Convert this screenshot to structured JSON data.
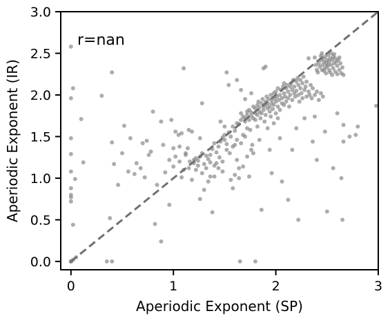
{
  "chart_data": {
    "type": "scatter",
    "xlabel": "Aperiodic Exponent (SP)",
    "ylabel": "Aperiodic Exponent (IR)",
    "xlim": [
      -0.1,
      3.0
    ],
    "ylim": [
      -0.1,
      3.0
    ],
    "xticks": [
      "0",
      "1",
      "2",
      "3"
    ],
    "yticks": [
      "0.0",
      "0.5",
      "1.0",
      "1.5",
      "2.0",
      "2.5",
      "3.0"
    ],
    "annotation": "r=nan",
    "reference_line": {
      "style": "dashed",
      "from": [
        0,
        0
      ],
      "to": [
        3,
        3
      ]
    },
    "point_color": "#808080",
    "line_color": "#707070",
    "grid": false,
    "points": [
      [
        0.0,
        0.0
      ],
      [
        0.0,
        0.0
      ],
      [
        0.0,
        0.0
      ],
      [
        0.02,
        0.02
      ],
      [
        0.05,
        0.05
      ],
      [
        0.0,
        0.72
      ],
      [
        0.0,
        0.77
      ],
      [
        0.0,
        0.8
      ],
      [
        0.0,
        0.88
      ],
      [
        0.0,
        1.08
      ],
      [
        0.0,
        1.29
      ],
      [
        0.0,
        1.48
      ],
      [
        0.0,
        1.96
      ],
      [
        0.0,
        2.58
      ],
      [
        0.02,
        2.08
      ],
      [
        0.02,
        0.44
      ],
      [
        0.04,
        0.99
      ],
      [
        0.1,
        1.71
      ],
      [
        0.12,
        1.19
      ],
      [
        0.3,
        1.99
      ],
      [
        0.35,
        0.0
      ],
      [
        0.4,
        0.0
      ],
      [
        0.38,
        0.52
      ],
      [
        0.4,
        1.43
      ],
      [
        0.4,
        2.27
      ],
      [
        0.42,
        1.17
      ],
      [
        0.52,
        1.63
      ],
      [
        0.58,
        1.48
      ],
      [
        0.62,
        1.05
      ],
      [
        0.68,
        1.12
      ],
      [
        0.72,
        1.01
      ],
      [
        0.74,
        1.45
      ],
      [
        0.78,
        1.32
      ],
      [
        0.8,
        1.8
      ],
      [
        0.82,
        0.45
      ],
      [
        0.88,
        0.24
      ],
      [
        0.88,
        1.68
      ],
      [
        0.92,
        1.07
      ],
      [
        0.96,
        0.68
      ],
      [
        0.98,
        1.7
      ],
      [
        1.0,
        1.36
      ],
      [
        1.02,
        1.56
      ],
      [
        1.05,
        1.52
      ],
      [
        1.08,
        1.01
      ],
      [
        1.08,
        1.54
      ],
      [
        1.1,
        2.32
      ],
      [
        1.12,
        1.3
      ],
      [
        1.15,
        1.58
      ],
      [
        1.15,
        1.12
      ],
      [
        1.18,
        0.98
      ],
      [
        1.2,
        1.18
      ],
      [
        1.2,
        1.22
      ],
      [
        1.22,
        1.24
      ],
      [
        1.24,
        1.21
      ],
      [
        1.24,
        1.15
      ],
      [
        1.26,
        0.75
      ],
      [
        1.26,
        1.26
      ],
      [
        1.28,
        1.3
      ],
      [
        1.28,
        1.9
      ],
      [
        1.3,
        1.17
      ],
      [
        1.32,
        1.27
      ],
      [
        1.32,
        1.12
      ],
      [
        1.34,
        1.23
      ],
      [
        1.36,
        1.28
      ],
      [
        1.36,
        1.19
      ],
      [
        1.38,
        0.59
      ],
      [
        1.38,
        1.35
      ],
      [
        1.4,
        1.15
      ],
      [
        1.4,
        1.42
      ],
      [
        1.42,
        1.31
      ],
      [
        1.44,
        1.38
      ],
      [
        1.45,
        1.25
      ],
      [
        1.46,
        1.44
      ],
      [
        1.48,
        1.08
      ],
      [
        1.48,
        1.49
      ],
      [
        1.5,
        1.46
      ],
      [
        1.5,
        1.52
      ],
      [
        1.52,
        1.41
      ],
      [
        1.52,
        2.27
      ],
      [
        1.54,
        1.55
      ],
      [
        1.55,
        1.3
      ],
      [
        1.56,
        1.5
      ],
      [
        1.58,
        1.62
      ],
      [
        1.58,
        0.88
      ],
      [
        1.6,
        1.57
      ],
      [
        1.6,
        1.4
      ],
      [
        1.62,
        1.66
      ],
      [
        1.62,
        1.22
      ],
      [
        1.64,
        1.65
      ],
      [
        1.64,
        1.0
      ],
      [
        1.65,
        0.0
      ],
      [
        1.66,
        1.7
      ],
      [
        1.66,
        1.78
      ],
      [
        1.68,
        1.74
      ],
      [
        1.68,
        1.52
      ],
      [
        1.7,
        1.68
      ],
      [
        1.7,
        1.72
      ],
      [
        1.7,
        1.95
      ],
      [
        1.72,
        1.8
      ],
      [
        1.72,
        1.76
      ],
      [
        1.72,
        1.6
      ],
      [
        1.74,
        1.7
      ],
      [
        1.74,
        1.82
      ],
      [
        1.75,
        1.58
      ],
      [
        1.76,
        1.75
      ],
      [
        1.76,
        1.79
      ],
      [
        1.77,
        1.4
      ],
      [
        1.78,
        1.72
      ],
      [
        1.78,
        1.86
      ],
      [
        1.8,
        1.78
      ],
      [
        1.8,
        1.84
      ],
      [
        1.8,
        1.7
      ],
      [
        1.8,
        0.0
      ],
      [
        1.82,
        1.88
      ],
      [
        1.82,
        1.76
      ],
      [
        1.82,
        1.62
      ],
      [
        1.83,
        1.92
      ],
      [
        1.84,
        1.8
      ],
      [
        1.84,
        1.85
      ],
      [
        1.85,
        1.72
      ],
      [
        1.86,
        1.9
      ],
      [
        1.86,
        1.78
      ],
      [
        1.87,
        1.95
      ],
      [
        1.88,
        1.82
      ],
      [
        1.88,
        1.86
      ],
      [
        1.89,
        1.68
      ],
      [
        1.9,
        1.88
      ],
      [
        1.9,
        1.92
      ],
      [
        1.9,
        1.76
      ],
      [
        1.91,
        1.98
      ],
      [
        1.92,
        1.84
      ],
      [
        1.92,
        1.9
      ],
      [
        1.93,
        1.95
      ],
      [
        1.94,
        1.8
      ],
      [
        1.94,
        1.86
      ],
      [
        1.95,
        2.0
      ],
      [
        1.95,
        1.74
      ],
      [
        1.96,
        1.9
      ],
      [
        1.96,
        1.94
      ],
      [
        1.97,
        1.83
      ],
      [
        1.98,
        2.02
      ],
      [
        1.98,
        1.88
      ],
      [
        1.99,
        1.96
      ],
      [
        2.0,
        1.92
      ],
      [
        2.0,
        2.04
      ],
      [
        2.0,
        1.78
      ],
      [
        2.01,
        1.98
      ],
      [
        2.02,
        1.86
      ],
      [
        2.02,
        2.08
      ],
      [
        2.03,
        1.94
      ],
      [
        2.04,
        2.0
      ],
      [
        2.04,
        1.82
      ],
      [
        2.05,
        2.06
      ],
      [
        2.06,
        1.9
      ],
      [
        2.06,
        1.96
      ],
      [
        2.07,
        2.1
      ],
      [
        2.08,
        1.88
      ],
      [
        2.08,
        2.02
      ],
      [
        2.09,
        1.98
      ],
      [
        2.1,
        2.08
      ],
      [
        2.1,
        1.92
      ],
      [
        2.11,
        2.12
      ],
      [
        2.12,
        1.96
      ],
      [
        2.12,
        2.04
      ],
      [
        2.13,
        1.86
      ],
      [
        2.14,
        2.1
      ],
      [
        2.14,
        2.0
      ],
      [
        2.15,
        2.14
      ],
      [
        2.16,
        1.94
      ],
      [
        2.16,
        2.06
      ],
      [
        2.17,
        2.18
      ],
      [
        2.18,
        2.02
      ],
      [
        2.18,
        2.1
      ],
      [
        2.19,
        1.98
      ],
      [
        2.2,
        2.16
      ],
      [
        2.2,
        2.05
      ],
      [
        2.21,
        2.2
      ],
      [
        2.22,
        2.0
      ],
      [
        2.22,
        2.12
      ],
      [
        2.23,
        1.92
      ],
      [
        2.24,
        2.08
      ],
      [
        2.24,
        2.18
      ],
      [
        2.25,
        2.02
      ],
      [
        2.26,
        2.14
      ],
      [
        2.26,
        1.96
      ],
      [
        2.27,
        2.22
      ],
      [
        2.28,
        2.06
      ],
      [
        2.29,
        2.1
      ],
      [
        2.3,
        1.98
      ],
      [
        2.3,
        2.16
      ],
      [
        2.32,
        2.04
      ],
      [
        2.33,
        2.0
      ],
      [
        2.34,
        2.12
      ],
      [
        2.35,
        1.96
      ],
      [
        2.36,
        2.08
      ],
      [
        2.38,
        2.0
      ],
      [
        2.4,
        2.04
      ],
      [
        2.42,
        1.94
      ],
      [
        2.44,
        2.02
      ],
      [
        2.46,
        1.98
      ],
      [
        2.4,
        2.3
      ],
      [
        2.42,
        2.38
      ],
      [
        2.43,
        2.34
      ],
      [
        2.44,
        2.42
      ],
      [
        2.45,
        2.3
      ],
      [
        2.46,
        2.36
      ],
      [
        2.46,
        2.44
      ],
      [
        2.47,
        2.4
      ],
      [
        2.48,
        2.32
      ],
      [
        2.48,
        2.46
      ],
      [
        2.49,
        2.38
      ],
      [
        2.5,
        2.42
      ],
      [
        2.5,
        2.34
      ],
      [
        2.51,
        2.48
      ],
      [
        2.52,
        2.4
      ],
      [
        2.52,
        2.3
      ],
      [
        2.53,
        2.44
      ],
      [
        2.54,
        2.36
      ],
      [
        2.54,
        2.5
      ],
      [
        2.55,
        2.42
      ],
      [
        2.56,
        2.32
      ],
      [
        2.56,
        2.46
      ],
      [
        2.57,
        2.38
      ],
      [
        2.58,
        2.44
      ],
      [
        2.58,
        2.28
      ],
      [
        2.59,
        2.4
      ],
      [
        2.6,
        2.35
      ],
      [
        2.61,
        2.42
      ],
      [
        2.62,
        2.3
      ],
      [
        2.63,
        2.38
      ],
      [
        2.64,
        2.26
      ],
      [
        2.65,
        2.33
      ],
      [
        2.66,
        2.24
      ],
      [
        2.44,
        2.47
      ],
      [
        2.47,
        2.29
      ],
      [
        2.51,
        2.36
      ],
      [
        2.53,
        2.27
      ],
      [
        2.57,
        2.49
      ],
      [
        2.6,
        2.25
      ],
      [
        2.62,
        2.45
      ],
      [
        2.38,
        2.45
      ],
      [
        2.39,
        2.36
      ],
      [
        2.41,
        2.27
      ],
      [
        2.45,
        2.5
      ],
      [
        2.49,
        2.26
      ],
      [
        2.55,
        2.24
      ],
      [
        1.9,
        2.34
      ],
      [
        1.96,
        1.06
      ],
      [
        2.04,
        1.48
      ],
      [
        2.06,
        0.96
      ],
      [
        2.08,
        2.14
      ],
      [
        2.12,
        0.74
      ],
      [
        2.16,
        1.34
      ],
      [
        2.2,
        1.6
      ],
      [
        2.22,
        0.5
      ],
      [
        2.28,
        1.72
      ],
      [
        2.32,
        2.44
      ],
      [
        2.36,
        1.44
      ],
      [
        2.38,
        1.74
      ],
      [
        2.4,
        1.22
      ],
      [
        2.48,
        1.56
      ],
      [
        2.5,
        0.6
      ],
      [
        2.56,
        1.12
      ],
      [
        2.6,
        1.78
      ],
      [
        2.64,
        1.0
      ],
      [
        2.65,
        0.5
      ],
      [
        2.66,
        1.44
      ],
      [
        2.66,
        1.64
      ],
      [
        2.72,
        1.5
      ],
      [
        2.78,
        1.52
      ],
      [
        2.8,
        1.62
      ],
      [
        2.98,
        1.87
      ],
      [
        1.54,
        2.12
      ],
      [
        1.62,
        2.18
      ],
      [
        1.66,
        2.06
      ],
      [
        1.7,
        1.5
      ],
      [
        1.74,
        1.02
      ],
      [
        1.76,
        2.02
      ],
      [
        1.78,
        1.3
      ],
      [
        1.84,
        1.46
      ],
      [
        1.86,
        0.62
      ],
      [
        1.88,
        2.32
      ],
      [
        1.92,
        1.6
      ],
      [
        1.94,
        1.34
      ],
      [
        1.98,
        1.66
      ],
      [
        2.02,
        1.72
      ],
      [
        1.5,
        1.62
      ],
      [
        1.46,
        1.68
      ],
      [
        1.42,
        1.18
      ],
      [
        1.36,
        1.02
      ],
      [
        1.3,
        0.86
      ],
      [
        1.26,
        1.48
      ],
      [
        1.18,
        1.56
      ],
      [
        1.14,
        1.36
      ],
      [
        1.06,
        1.38
      ],
      [
        1.0,
        1.14
      ],
      [
        0.96,
        1.22
      ],
      [
        0.9,
        1.4
      ],
      [
        0.84,
        0.92
      ],
      [
        0.76,
        1.28
      ],
      [
        0.7,
        1.42
      ],
      [
        0.64,
        1.18
      ],
      [
        0.56,
        1.08
      ],
      [
        0.5,
        1.3
      ],
      [
        0.46,
        0.92
      ],
      [
        1.56,
        0.98
      ],
      [
        1.6,
        1.04
      ],
      [
        1.64,
        1.12
      ],
      [
        1.68,
        1.14
      ],
      [
        1.72,
        1.26
      ],
      [
        1.76,
        1.34
      ],
      [
        1.58,
        1.38
      ],
      [
        1.62,
        1.46
      ],
      [
        1.66,
        1.42
      ],
      [
        1.52,
        1.34
      ],
      [
        1.48,
        1.2
      ],
      [
        1.44,
        1.12
      ],
      [
        1.4,
        1.02
      ],
      [
        1.34,
        0.96
      ],
      [
        1.28,
        1.06
      ],
      [
        1.22,
        1.1
      ],
      [
        1.16,
        1.2
      ],
      [
        1.12,
        1.28
      ],
      [
        1.1,
        1.1
      ],
      [
        1.06,
        1.2
      ],
      [
        1.02,
        1.26
      ]
    ]
  }
}
